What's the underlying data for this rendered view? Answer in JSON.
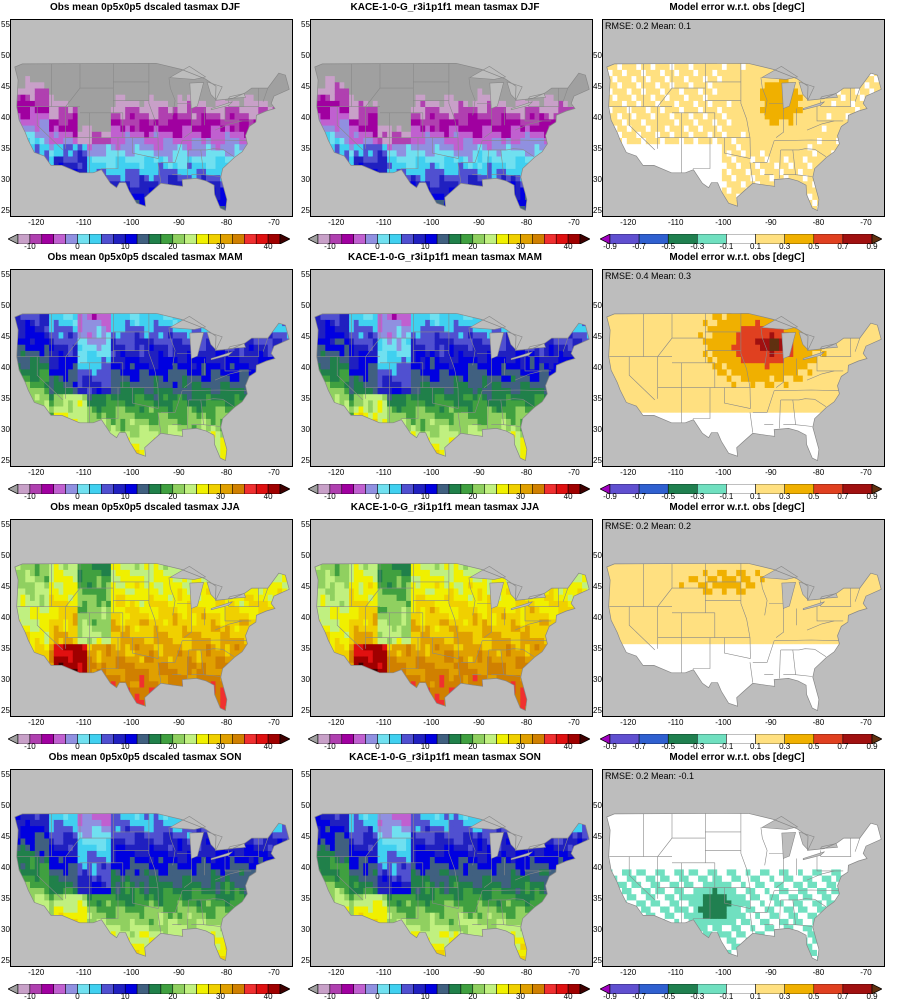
{
  "columns": [
    "obs",
    "model",
    "error"
  ],
  "rows": [
    {
      "season": "DJF",
      "obs_title": "Obs mean 0p5x0p5 dscaled tasmax DJF",
      "model_title": "KACE-1-0-G_r3i1p1f1 mean tasmax DJF",
      "error_title": "Model error w.r.t. obs [degC]",
      "stats": "RMSE: 0.2  Mean: 0.1"
    },
    {
      "season": "MAM",
      "obs_title": "Obs mean 0p5x0p5 dscaled tasmax MAM",
      "model_title": "KACE-1-0-G_r3i1p1f1 mean tasmax MAM",
      "error_title": "Model error w.r.t. obs [degC]",
      "stats": "RMSE: 0.4  Mean: 0.3"
    },
    {
      "season": "JJA",
      "obs_title": "Obs mean 0p5x0p5 dscaled tasmax JJA",
      "model_title": "KACE-1-0-G_r3i1p1f1 mean tasmax JJA",
      "error_title": "Model error w.r.t. obs [degC]",
      "stats": "RMSE: 0.2  Mean: 0.2"
    },
    {
      "season": "SON",
      "obs_title": "Obs mean 0p5x0p5 dscaled tasmax SON",
      "model_title": "KACE-1-0-G_r3i1p1f1 mean tasmax SON",
      "error_title": "Model error w.r.t. obs [degC]",
      "stats": "RMSE: 0.2  Mean: -0.1"
    }
  ],
  "axes": {
    "lat_ticks": [
      "55",
      "50",
      "45",
      "40",
      "35",
      "30",
      "25"
    ],
    "lon_ticks": [
      "-120",
      "-110",
      "-100",
      "-90",
      "-80",
      "-70"
    ],
    "lon_range": [
      -125.5,
      -66
    ],
    "lat_range": [
      24,
      56
    ]
  },
  "temp_colorbar": {
    "labels": [
      "-10",
      "0",
      "10",
      "20",
      "30",
      "40"
    ],
    "colors": [
      "#a0a0a0",
      "#c8a0c8",
      "#b040b0",
      "#a000a0",
      "#c060d0",
      "#9090e0",
      "#70e0f0",
      "#40d0f0",
      "#5050d0",
      "#2020c0",
      "#0000e0",
      "#406080",
      "#20804a",
      "#40a040",
      "#90d060",
      "#c0f080",
      "#f0f000",
      "#f0d000",
      "#e0a000",
      "#d08000",
      "#f03030",
      "#e01010",
      "#a00000",
      "#400000"
    ]
  },
  "error_colorbar": {
    "labels": [
      "-0.9",
      "-0.7",
      "-0.5",
      "-0.3",
      "-0.1",
      "0.1",
      "0.3",
      "0.5",
      "0.7",
      "0.9"
    ],
    "colors": [
      "#a000c0",
      "#6050d0",
      "#3060d0",
      "#208050",
      "#70e0c0",
      "#ffffff",
      "#ffe080",
      "#f0b000",
      "#e04020",
      "#a01010",
      "#603010"
    ]
  },
  "map_colors": {
    "land": "#bdbdbd",
    "borders": "#888888",
    "frame": "#000000"
  }
}
